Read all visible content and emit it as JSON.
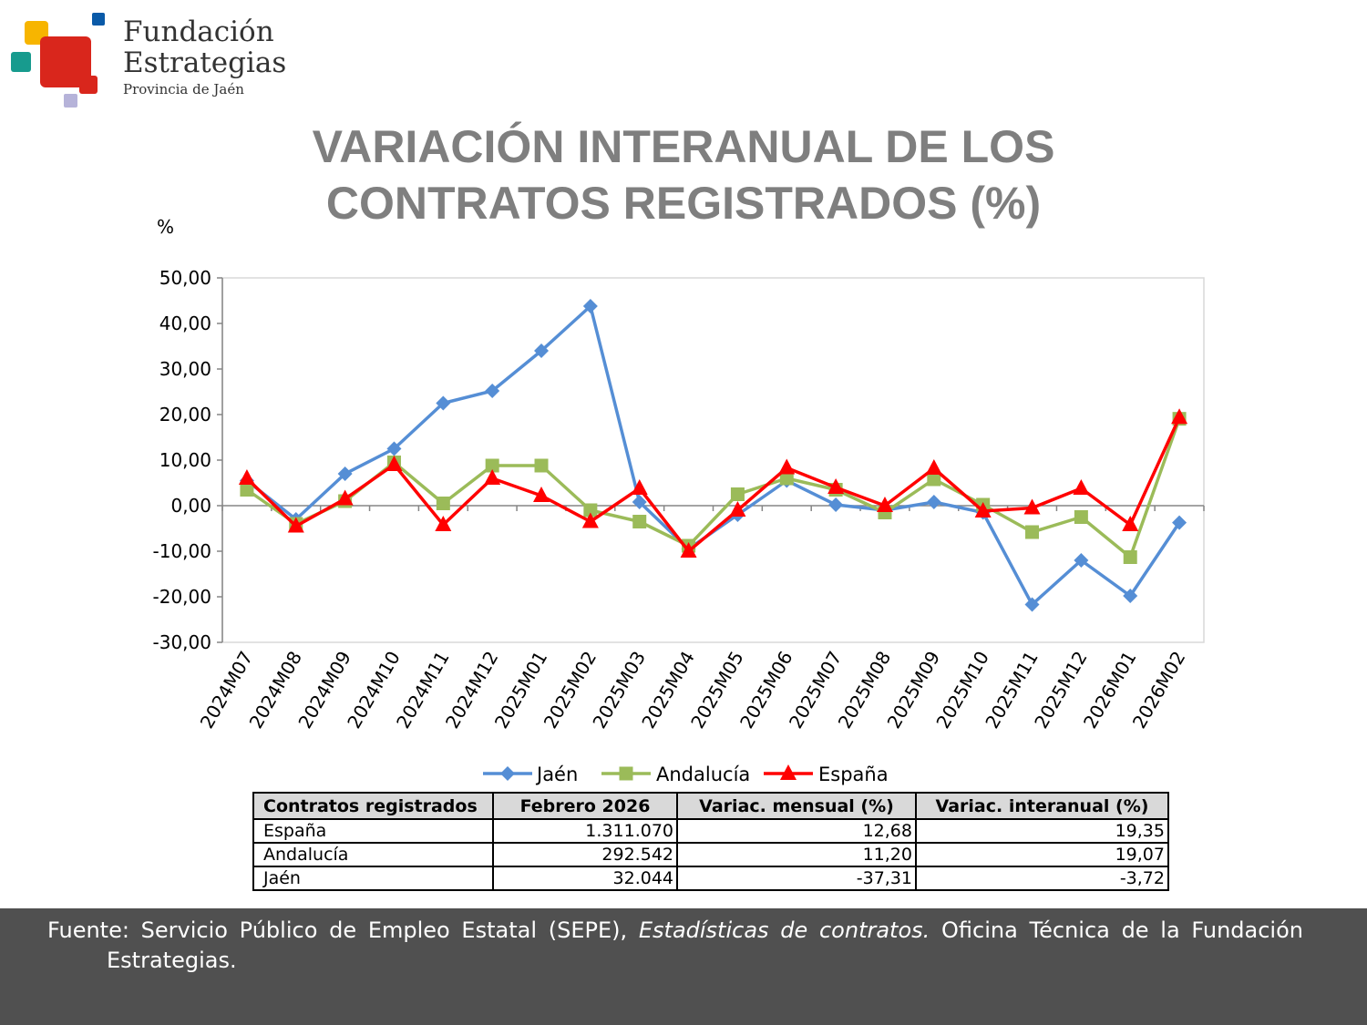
{
  "logo": {
    "line1": "Fundación",
    "line2": "Estrategias",
    "line3": "Provincia de Jaén",
    "colors": {
      "yellow": "#f7b500",
      "red": "#d9261c",
      "teal": "#179b8e",
      "blue": "#0a5aa8",
      "lilac": "#b6b3d9"
    }
  },
  "title": {
    "line1": "VARIACIÓN INTERANUAL DE LOS",
    "line2": "CONTRATOS REGISTRADOS (%)"
  },
  "chart_data": {
    "type": "line",
    "ylabel": "%",
    "ylim": [
      -30,
      50
    ],
    "yticks": [
      "50,00",
      "40,00",
      "30,00",
      "20,00",
      "10,00",
      "0,00",
      "-10,00",
      "-20,00",
      "-30,00"
    ],
    "ytick_values": [
      50,
      40,
      30,
      20,
      10,
      0,
      -10,
      -20,
      -30
    ],
    "grid": false,
    "legend_position": "bottom",
    "categories": [
      "2024M07",
      "2024M08",
      "2024M09",
      "2024M10",
      "2024M11",
      "2024M12",
      "2025M01",
      "2025M02",
      "2025M03",
      "2025M04",
      "2025M05",
      "2025M06",
      "2025M07",
      "2025M08",
      "2025M09",
      "2025M10",
      "2025M11",
      "2025M12",
      "2026M01",
      "2026M02"
    ],
    "series": [
      {
        "name": "Jaén",
        "color": "#558ed5",
        "marker": "diamond",
        "values": [
          5.5,
          -3.0,
          7.0,
          12.5,
          22.5,
          25.2,
          34.0,
          43.8,
          0.8,
          -9.5,
          -2.0,
          5.5,
          0.2,
          -1.0,
          0.8,
          -1.5,
          -21.7,
          -12.0,
          -19.8,
          -3.72
        ]
      },
      {
        "name": "Andalucía",
        "color": "#9bbb59",
        "marker": "square",
        "values": [
          3.5,
          -4.0,
          1.0,
          9.5,
          0.5,
          8.8,
          8.8,
          -1.0,
          -3.5,
          -8.8,
          2.5,
          6.0,
          3.5,
          -1.5,
          5.8,
          0.2,
          -5.8,
          -2.5,
          -11.3,
          19.07
        ]
      },
      {
        "name": "España",
        "color": "#ff0000",
        "marker": "triangle",
        "values": [
          6.0,
          -4.5,
          1.5,
          9.0,
          -4.2,
          6.0,
          2.2,
          -3.5,
          3.8,
          -10.0,
          -1.0,
          8.3,
          4.0,
          0.0,
          8.2,
          -1.2,
          -0.5,
          3.8,
          -4.2,
          19.35
        ]
      }
    ]
  },
  "table": {
    "headers": [
      "Contratos registrados",
      "Febrero 2026",
      "Variac. mensual (%)",
      "Variac. interanual (%)"
    ],
    "rows": [
      [
        "España",
        "1.311.070",
        "12,68",
        "19,35"
      ],
      [
        "Andalucía",
        "292.542",
        "11,20",
        "19,07"
      ],
      [
        "Jaén",
        "32.044",
        "-37,31",
        "-3,72"
      ]
    ]
  },
  "footer": {
    "prefix": "Fuente: Servicio Público de Empleo Estatal (SEPE),",
    "italic": "Estadísticas de contratos.",
    "suffix": "Oficina Técnica de la Fundación",
    "line2": "Estrategias."
  }
}
